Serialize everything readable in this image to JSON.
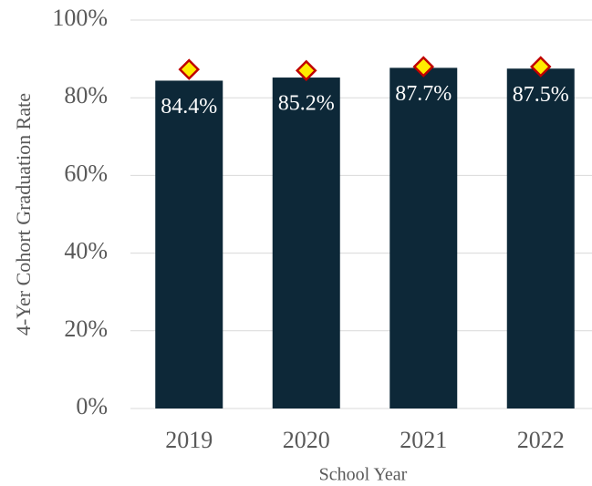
{
  "chart_data": {
    "type": "bar",
    "y_label": "4-Yer Cohort Graduation Rate",
    "x_label": "School Year",
    "categories": [
      "2019",
      "2020",
      "2021",
      "2022"
    ],
    "series": [
      {
        "type": "bar",
        "color": "#0d2838",
        "values": [
          84.4,
          85.2,
          87.7,
          87.5
        ],
        "value_labels": [
          "84.4%",
          "85.2%",
          "87.7%",
          "87.5%"
        ],
        "label_color": "#ffffff"
      },
      {
        "type": "scatter",
        "marker": "diamond",
        "color": "#ffeb00",
        "edge_color": "#c00000",
        "values": [
          87.3,
          87.0,
          88.0,
          88.0
        ]
      }
    ],
    "ylim": [
      0,
      100
    ],
    "yticks": [
      {
        "value": 0,
        "label": "0%"
      },
      {
        "value": 20,
        "label": "20%"
      },
      {
        "value": 40,
        "label": "40%"
      },
      {
        "value": 60,
        "label": "60%"
      },
      {
        "value": 80,
        "label": "80%"
      },
      {
        "value": 100,
        "label": "100%"
      }
    ],
    "grid": true
  }
}
